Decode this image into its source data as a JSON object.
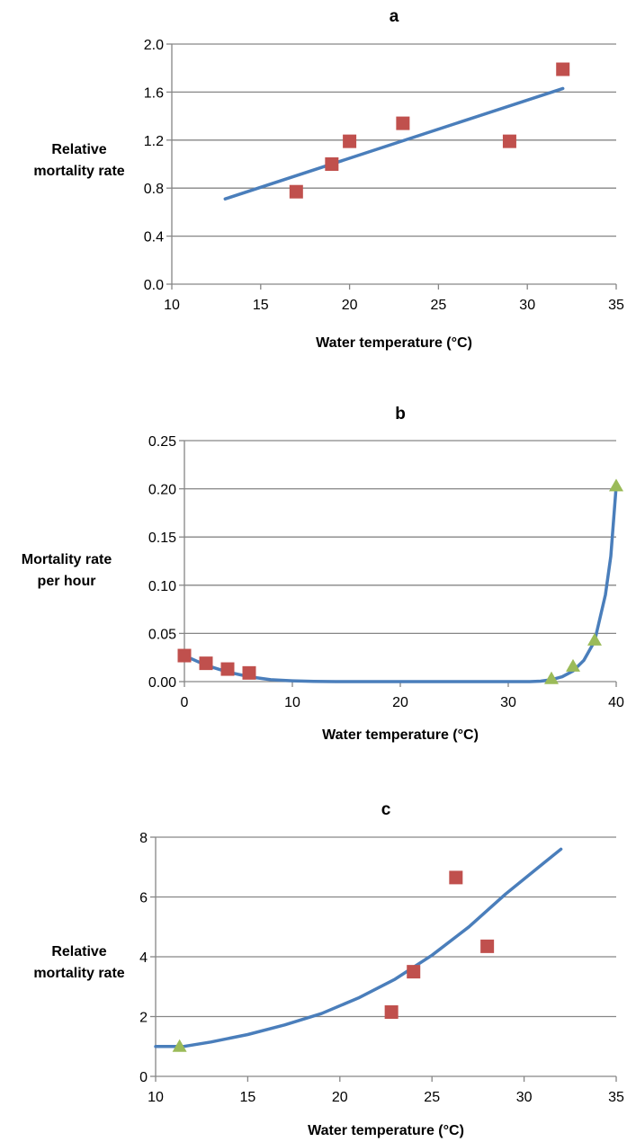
{
  "colors": {
    "fit_line": "#4a7ebb",
    "observed_marker": "#c0504d",
    "triangle_marker": "#9bbb59",
    "gridline": "#868686",
    "axis_line": "#868686"
  },
  "chart_data": [
    {
      "type": "scatter",
      "title": "a",
      "xlabel": "Water temperature (°C)",
      "ylabel": "Relative\nmortality rate",
      "xlim": [
        10,
        35
      ],
      "ylim": [
        0,
        2.0
      ],
      "xticks": [
        10,
        15,
        20,
        25,
        30,
        35
      ],
      "xtick_labels": [
        "10",
        "15",
        "20",
        "25",
        "30",
        "35"
      ],
      "yticks": [
        0,
        0.4,
        0.8,
        1.2,
        1.6,
        2.0
      ],
      "ytick_labels": [
        "0.0",
        "0.4",
        "0.8",
        "1.2",
        "1.6",
        "2.0"
      ],
      "grid": "horizontal",
      "series": [
        {
          "marker": "square",
          "points": [
            [
              17,
              0.77
            ],
            [
              19,
              1.0
            ],
            [
              20,
              1.19
            ],
            [
              23,
              1.34
            ],
            [
              29,
              1.19
            ],
            [
              32,
              1.79
            ]
          ]
        }
      ],
      "fit_line": {
        "kind": "linear",
        "points": [
          [
            13,
            0.71
          ],
          [
            32,
            1.63
          ]
        ]
      }
    },
    {
      "type": "scatter",
      "title": "b",
      "xlabel": "Water temperature (°C)",
      "ylabel": "Mortality rate\nper hour",
      "xlim": [
        0,
        40
      ],
      "ylim": [
        0,
        0.25
      ],
      "xticks": [
        0,
        10,
        20,
        30,
        40
      ],
      "xtick_labels": [
        "0",
        "10",
        "20",
        "30",
        "40"
      ],
      "yticks": [
        0,
        0.05,
        0.1,
        0.15,
        0.2,
        0.25
      ],
      "ytick_labels": [
        "0.00",
        "0.05",
        "0.10",
        "0.15",
        "0.20",
        "0.25"
      ],
      "grid": "horizontal",
      "series": [
        {
          "marker": "square",
          "points": [
            [
              0,
              0.027
            ],
            [
              2,
              0.019
            ],
            [
              4,
              0.013
            ],
            [
              6,
              0.009
            ]
          ]
        },
        {
          "marker": "triangle",
          "points": [
            [
              34,
              0.003
            ],
            [
              36,
              0.016
            ],
            [
              38,
              0.043
            ],
            [
              40,
              0.203
            ]
          ]
        }
      ],
      "fit_line": {
        "kind": "curve",
        "points": [
          [
            0,
            0.027
          ],
          [
            2,
            0.017
          ],
          [
            4,
            0.01
          ],
          [
            6,
            0.005
          ],
          [
            8,
            0.002
          ],
          [
            10,
            0.0008
          ],
          [
            12,
            0.0002
          ],
          [
            14,
            0
          ],
          [
            30,
            0
          ],
          [
            32,
            0
          ],
          [
            33,
            0.0005
          ],
          [
            34,
            0.002
          ],
          [
            35,
            0.005
          ],
          [
            36,
            0.011
          ],
          [
            37,
            0.022
          ],
          [
            38,
            0.042
          ],
          [
            39,
            0.09
          ],
          [
            39.5,
            0.13
          ],
          [
            40,
            0.203
          ]
        ]
      }
    },
    {
      "type": "scatter",
      "title": "c",
      "xlabel": "Water temperature (°C)",
      "ylabel": "Relative\nmortality rate",
      "xlim": [
        10,
        35
      ],
      "ylim": [
        0,
        8
      ],
      "xticks": [
        10,
        15,
        20,
        25,
        30,
        35
      ],
      "xtick_labels": [
        "10",
        "15",
        "20",
        "25",
        "30",
        "35"
      ],
      "yticks": [
        0,
        2,
        4,
        6,
        8
      ],
      "ytick_labels": [
        "0",
        "2",
        "4",
        "6",
        "8"
      ],
      "grid": "horizontal",
      "series": [
        {
          "marker": "square",
          "points": [
            [
              22.8,
              2.15
            ],
            [
              24,
              3.5
            ],
            [
              26.3,
              6.65
            ],
            [
              28,
              4.35
            ]
          ]
        },
        {
          "marker": "triangle",
          "points": [
            [
              11.3,
              1.0
            ]
          ]
        }
      ],
      "fit_line": {
        "kind": "curve",
        "points": [
          [
            10,
            1.0
          ],
          [
            11.5,
            1.0
          ],
          [
            13,
            1.15
          ],
          [
            15,
            1.4
          ],
          [
            17,
            1.72
          ],
          [
            19,
            2.1
          ],
          [
            21,
            2.62
          ],
          [
            23,
            3.25
          ],
          [
            25,
            4.05
          ],
          [
            27,
            5.0
          ],
          [
            29,
            6.1
          ],
          [
            31,
            7.1
          ],
          [
            32,
            7.6
          ]
        ]
      }
    }
  ]
}
